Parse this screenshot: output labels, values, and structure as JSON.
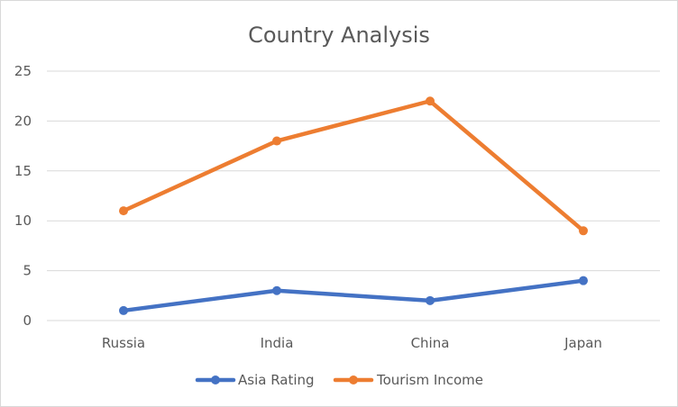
{
  "chart_data": {
    "type": "line",
    "title": "Country Analysis",
    "categories": [
      "Russia",
      "India",
      "China",
      "Japan"
    ],
    "series": [
      {
        "name": "Asia Rating",
        "values": [
          1,
          3,
          2,
          4
        ],
        "color": "#4472C4"
      },
      {
        "name": "Tourism Income",
        "values": [
          11,
          18,
          22,
          9
        ],
        "color": "#ED7D31"
      }
    ],
    "ylim": [
      0,
      25
    ],
    "yticks": [
      0,
      5,
      10,
      15,
      20,
      25
    ],
    "grid": true,
    "legend_position": "bottom",
    "xlabel": "",
    "ylabel": ""
  }
}
